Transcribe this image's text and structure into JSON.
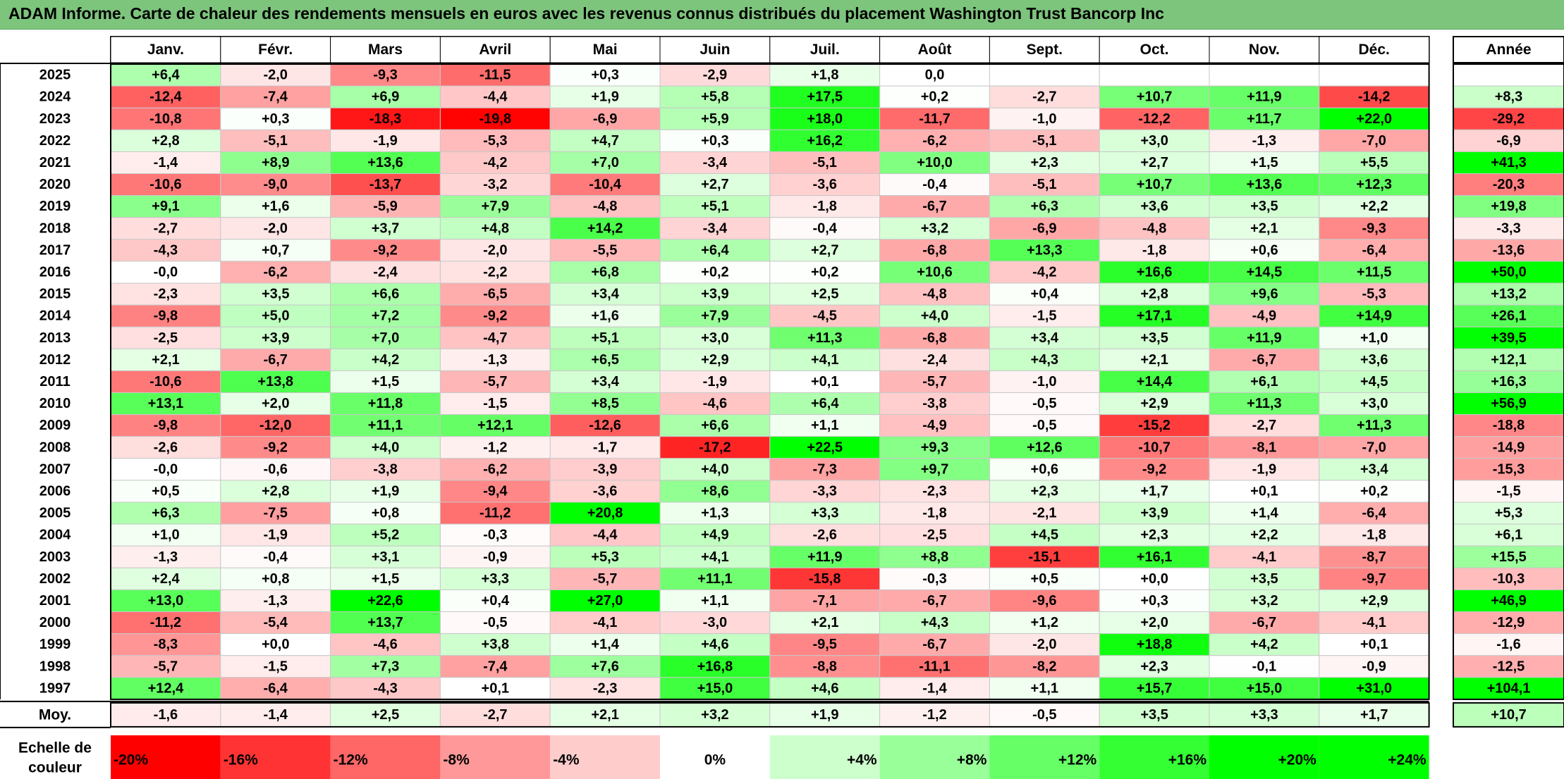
{
  "title": "ADAM Informe. Carte de chaleur des rendements mensuels en euros avec les revenus connus distribués du placement Washington Trust Bancorp Inc",
  "chart_data": {
    "type": "heatmap",
    "title": "ADAM Informe. Carte de chaleur des rendements mensuels en euros avec les revenus connus distribués du placement Washington Trust Bancorp Inc",
    "months": [
      "Janv.",
      "Févr.",
      "Mars",
      "Avril",
      "Mai",
      "Juin",
      "Juil.",
      "Août",
      "Sept.",
      "Oct.",
      "Nov.",
      "Déc."
    ],
    "year_header": "Année",
    "rows": [
      {
        "year": "2025",
        "values": [
          "+6,4",
          "-2,0",
          "-9,3",
          "-11,5",
          "+0,3",
          "-2,9",
          "+1,8",
          "0,0",
          "",
          "",
          "",
          ""
        ],
        "annual": ""
      },
      {
        "year": "2024",
        "values": [
          "-12,4",
          "-7,4",
          "+6,9",
          "-4,4",
          "+1,9",
          "+5,8",
          "+17,5",
          "+0,2",
          "-2,7",
          "+10,7",
          "+11,9",
          "-14,2"
        ],
        "annual": "+8,3"
      },
      {
        "year": "2023",
        "values": [
          "-10,8",
          "+0,3",
          "-18,3",
          "-19,8",
          "-6,9",
          "+5,9",
          "+18,0",
          "-11,7",
          "-1,0",
          "-12,2",
          "+11,7",
          "+22,0"
        ],
        "annual": "-29,2"
      },
      {
        "year": "2022",
        "values": [
          "+2,8",
          "-5,1",
          "-1,9",
          "-5,3",
          "+4,7",
          "+0,3",
          "+16,2",
          "-6,2",
          "-5,1",
          "+3,0",
          "-1,3",
          "-7,0"
        ],
        "annual": "-6,9"
      },
      {
        "year": "2021",
        "values": [
          "-1,4",
          "+8,9",
          "+13,6",
          "-4,2",
          "+7,0",
          "-3,4",
          "-5,1",
          "+10,0",
          "+2,3",
          "+2,7",
          "+1,5",
          "+5,5"
        ],
        "annual": "+41,3"
      },
      {
        "year": "2020",
        "values": [
          "-10,6",
          "-9,0",
          "-13,7",
          "-3,2",
          "-10,4",
          "+2,7",
          "-3,6",
          "-0,4",
          "-5,1",
          "+10,7",
          "+13,6",
          "+12,3"
        ],
        "annual": "-20,3"
      },
      {
        "year": "2019",
        "values": [
          "+9,1",
          "+1,6",
          "-5,9",
          "+7,9",
          "-4,8",
          "+5,1",
          "-1,8",
          "-6,7",
          "+6,3",
          "+3,6",
          "+3,5",
          "+2,2"
        ],
        "annual": "+19,8"
      },
      {
        "year": "2018",
        "values": [
          "-2,7",
          "-2,0",
          "+3,7",
          "+4,8",
          "+14,2",
          "-3,4",
          "-0,4",
          "+3,2",
          "-6,9",
          "-4,8",
          "+2,1",
          "-9,3"
        ],
        "annual": "-3,3"
      },
      {
        "year": "2017",
        "values": [
          "-4,3",
          "+0,7",
          "-9,2",
          "-2,0",
          "-5,5",
          "+6,4",
          "+2,7",
          "-6,8",
          "+13,3",
          "-1,8",
          "+0,6",
          "-6,4"
        ],
        "annual": "-13,6"
      },
      {
        "year": "2016",
        "values": [
          "-0,0",
          "-6,2",
          "-2,4",
          "-2,2",
          "+6,8",
          "+0,2",
          "+0,2",
          "+10,6",
          "-4,2",
          "+16,6",
          "+14,5",
          "+11,5"
        ],
        "annual": "+50,0"
      },
      {
        "year": "2015",
        "values": [
          "-2,3",
          "+3,5",
          "+6,6",
          "-6,5",
          "+3,4",
          "+3,9",
          "+2,5",
          "-4,8",
          "+0,4",
          "+2,8",
          "+9,6",
          "-5,3"
        ],
        "annual": "+13,2"
      },
      {
        "year": "2014",
        "values": [
          "-9,8",
          "+5,0",
          "+7,2",
          "-9,2",
          "+1,6",
          "+7,9",
          "-4,5",
          "+4,0",
          "-1,5",
          "+17,1",
          "-4,9",
          "+14,9"
        ],
        "annual": "+26,1"
      },
      {
        "year": "2013",
        "values": [
          "-2,5",
          "+3,9",
          "+7,0",
          "-4,7",
          "+5,1",
          "+3,0",
          "+11,3",
          "-6,8",
          "+3,4",
          "+3,5",
          "+11,9",
          "+1,0"
        ],
        "annual": "+39,5"
      },
      {
        "year": "2012",
        "values": [
          "+2,1",
          "-6,7",
          "+4,2",
          "-1,3",
          "+6,5",
          "+2,9",
          "+4,1",
          "-2,4",
          "+4,3",
          "+2,1",
          "-6,7",
          "+3,6"
        ],
        "annual": "+12,1"
      },
      {
        "year": "2011",
        "values": [
          "-10,6",
          "+13,8",
          "+1,5",
          "-5,7",
          "+3,4",
          "-1,9",
          "+0,1",
          "-5,7",
          "-1,0",
          "+14,4",
          "+6,1",
          "+4,5"
        ],
        "annual": "+16,3"
      },
      {
        "year": "2010",
        "values": [
          "+13,1",
          "+2,0",
          "+11,8",
          "-1,5",
          "+8,5",
          "-4,6",
          "+6,4",
          "-3,8",
          "-0,5",
          "+2,9",
          "+11,3",
          "+3,0"
        ],
        "annual": "+56,9"
      },
      {
        "year": "2009",
        "values": [
          "-9,8",
          "-12,0",
          "+11,1",
          "+12,1",
          "-12,6",
          "+6,6",
          "+1,1",
          "-4,9",
          "-0,5",
          "-15,2",
          "-2,7",
          "+11,3"
        ],
        "annual": "-18,8"
      },
      {
        "year": "2008",
        "values": [
          "-2,6",
          "-9,2",
          "+4,0",
          "-1,2",
          "-1,7",
          "-17,2",
          "+22,5",
          "+9,3",
          "+12,6",
          "-10,7",
          "-8,1",
          "-7,0"
        ],
        "annual": "-14,9"
      },
      {
        "year": "2007",
        "values": [
          "-0,0",
          "-0,6",
          "-3,8",
          "-6,2",
          "-3,9",
          "+4,0",
          "-7,3",
          "+9,7",
          "+0,6",
          "-9,2",
          "-1,9",
          "+3,4"
        ],
        "annual": "-15,3"
      },
      {
        "year": "2006",
        "values": [
          "+0,5",
          "+2,8",
          "+1,9",
          "-9,4",
          "-3,6",
          "+8,6",
          "-3,3",
          "-2,3",
          "+2,3",
          "+1,7",
          "+0,1",
          "+0,2"
        ],
        "annual": "-1,5"
      },
      {
        "year": "2005",
        "values": [
          "+6,3",
          "-7,5",
          "+0,8",
          "-11,2",
          "+20,8",
          "+1,3",
          "+3,3",
          "-1,8",
          "-2,1",
          "+3,9",
          "+1,4",
          "-6,4"
        ],
        "annual": "+5,3"
      },
      {
        "year": "2004",
        "values": [
          "+1,0",
          "-1,9",
          "+5,2",
          "-0,3",
          "-4,4",
          "+4,9",
          "-2,6",
          "-2,5",
          "+4,5",
          "+2,3",
          "+2,2",
          "-1,8"
        ],
        "annual": "+6,1"
      },
      {
        "year": "2003",
        "values": [
          "-1,3",
          "-0,4",
          "+3,1",
          "-0,9",
          "+5,3",
          "+4,1",
          "+11,9",
          "+8,8",
          "-15,1",
          "+16,1",
          "-4,1",
          "-8,7"
        ],
        "annual": "+15,5"
      },
      {
        "year": "2002",
        "values": [
          "+2,4",
          "+0,8",
          "+1,5",
          "+3,3",
          "-5,7",
          "+11,1",
          "-15,8",
          "-0,3",
          "+0,5",
          "+0,0",
          "+3,5",
          "-9,7"
        ],
        "annual": "-10,3"
      },
      {
        "year": "2001",
        "values": [
          "+13,0",
          "-1,3",
          "+22,6",
          "+0,4",
          "+27,0",
          "+1,1",
          "-7,1",
          "-6,7",
          "-9,6",
          "+0,3",
          "+3,2",
          "+2,9"
        ],
        "annual": "+46,9"
      },
      {
        "year": "2000",
        "values": [
          "-11,2",
          "-5,4",
          "+13,7",
          "-0,5",
          "-4,1",
          "-3,0",
          "+2,1",
          "+4,3",
          "+1,2",
          "+2,0",
          "-6,7",
          "-4,1"
        ],
        "annual": "-12,9"
      },
      {
        "year": "1999",
        "values": [
          "-8,3",
          "+0,0",
          "-4,6",
          "+3,8",
          "+1,4",
          "+4,6",
          "-9,5",
          "-6,7",
          "-2,0",
          "+18,8",
          "+4,2",
          "+0,1"
        ],
        "annual": "-1,6"
      },
      {
        "year": "1998",
        "values": [
          "-5,7",
          "-1,5",
          "+7,3",
          "-7,4",
          "+7,6",
          "+16,8",
          "-8,8",
          "-11,1",
          "-8,2",
          "+2,3",
          "-0,1",
          "-0,9"
        ],
        "annual": "-12,5"
      },
      {
        "year": "1997",
        "values": [
          "+12,4",
          "-6,4",
          "-4,3",
          "+0,1",
          "-2,3",
          "+15,0",
          "+4,6",
          "-1,4",
          "+1,1",
          "+15,7",
          "+15,0",
          "+31,0"
        ],
        "annual": "+104,1"
      }
    ],
    "average": {
      "label": "Moy.",
      "values": [
        "-1,6",
        "-1,4",
        "+2,5",
        "-2,7",
        "+2,1",
        "+3,2",
        "+1,9",
        "-1,2",
        "-0,5",
        "+3,5",
        "+3,3",
        "+1,7"
      ],
      "annual": "+10,7"
    },
    "scale": {
      "label_line1": "Echelle de",
      "label_line2": "couleur",
      "steps": [
        "-20%",
        "-16%",
        "-12%",
        "-8%",
        "-4%",
        "0%",
        "+4%",
        "+8%",
        "+12%",
        "+16%",
        "+20%",
        "+24%"
      ]
    },
    "colors": {
      "negative": "#ff0000",
      "neutral": "#ffffff",
      "positive": "#00ff00",
      "title_bar": "#7dc47d"
    }
  }
}
